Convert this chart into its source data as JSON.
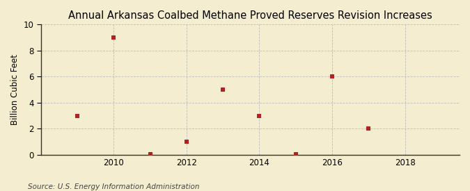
{
  "title": "Annual Arkansas Coalbed Methane Proved Reserves Revision Increases",
  "ylabel": "Billion Cubic Feet",
  "source": "Source: U.S. Energy Information Administration",
  "x": [
    2009,
    2010,
    2011,
    2012,
    2013,
    2014,
    2015,
    2016,
    2017
  ],
  "y": [
    3.0,
    9.0,
    0.05,
    1.0,
    5.0,
    3.0,
    0.05,
    6.0,
    2.0
  ],
  "xlim": [
    2008.0,
    2019.5
  ],
  "ylim": [
    0,
    10
  ],
  "yticks": [
    0,
    2,
    4,
    6,
    8,
    10
  ],
  "xticks": [
    2010,
    2012,
    2014,
    2016,
    2018
  ],
  "marker_color": "#b22222",
  "marker": "s",
  "marker_size": 4,
  "bg_color": "#f5edcf",
  "plot_bg_color": "#f5edcf",
  "grid_color": "#bbbbbb",
  "title_fontsize": 10.5,
  "label_fontsize": 8.5,
  "tick_fontsize": 8.5,
  "source_fontsize": 7.5
}
